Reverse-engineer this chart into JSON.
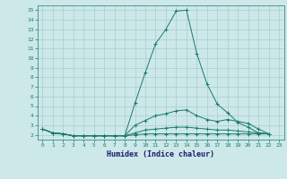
{
  "xlabel": "Humidex (Indice chaleur)",
  "ylabel": "",
  "background_color": "#cce8e8",
  "line_color": "#1a7a6e",
  "grid_color": "#aacece",
  "xlim": [
    -0.5,
    23.5
  ],
  "ylim": [
    1.5,
    15.5
  ],
  "xticks": [
    0,
    1,
    2,
    3,
    4,
    5,
    6,
    7,
    8,
    9,
    10,
    11,
    12,
    13,
    14,
    15,
    16,
    17,
    18,
    19,
    20,
    21,
    22,
    23
  ],
  "yticks": [
    2,
    3,
    4,
    5,
    6,
    7,
    8,
    9,
    10,
    11,
    12,
    13,
    14,
    15
  ],
  "series": [
    [
      2.6,
      2.2,
      2.1,
      1.9,
      1.9,
      1.9,
      1.9,
      1.9,
      1.9,
      5.3,
      8.5,
      11.5,
      13.0,
      14.9,
      15.0,
      10.5,
      7.3,
      5.2,
      4.3,
      3.3,
      2.8,
      2.2,
      2.1
    ],
    [
      2.6,
      2.2,
      2.1,
      1.9,
      1.9,
      1.9,
      1.9,
      1.9,
      1.9,
      3.0,
      3.5,
      4.0,
      4.2,
      4.5,
      4.6,
      4.0,
      3.6,
      3.4,
      3.6,
      3.4,
      3.2,
      2.6,
      2.1
    ],
    [
      2.6,
      2.2,
      2.1,
      1.9,
      1.9,
      1.9,
      1.9,
      1.9,
      1.9,
      2.2,
      2.5,
      2.6,
      2.7,
      2.8,
      2.8,
      2.7,
      2.6,
      2.5,
      2.5,
      2.4,
      2.3,
      2.2,
      2.1
    ],
    [
      2.6,
      2.2,
      2.1,
      1.9,
      1.9,
      1.9,
      1.9,
      1.9,
      1.9,
      2.0,
      2.1,
      2.1,
      2.1,
      2.1,
      2.1,
      2.1,
      2.1,
      2.1,
      2.1,
      2.1,
      2.1,
      2.1,
      2.1
    ]
  ]
}
